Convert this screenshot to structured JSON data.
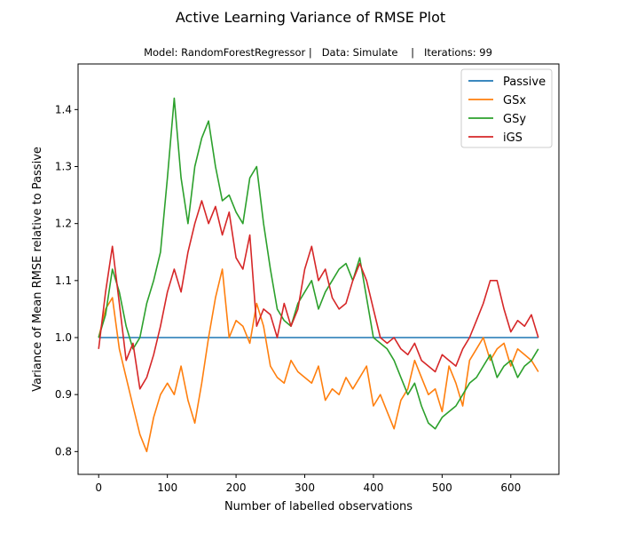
{
  "figure": {
    "title": "Active Learning Variance of RMSE Plot",
    "subtitle": "Model: RandomForestRegressor |   Data: Simulate    |   Iterations: 99"
  },
  "chart_data": {
    "type": "line",
    "xlabel": "Number of labelled observations",
    "ylabel": "Variance of Mean RMSE relative to Passive",
    "xlim": [
      -30,
      670
    ],
    "ylim": [
      0.76,
      1.48
    ],
    "xticks": [
      0,
      100,
      200,
      300,
      400,
      500,
      600
    ],
    "yticks": [
      0.8,
      0.9,
      1.0,
      1.1,
      1.2,
      1.3,
      1.4
    ],
    "legend_position": "top-right",
    "series": [
      {
        "name": "Passive",
        "color": "#1f77b4",
        "x": [
          0,
          640
        ],
        "y": [
          1.0,
          1.0
        ]
      },
      {
        "name": "GSx",
        "color": "#ff7f0e",
        "x": [
          0,
          10,
          20,
          30,
          40,
          50,
          60,
          70,
          80,
          90,
          100,
          110,
          120,
          130,
          140,
          150,
          160,
          170,
          180,
          190,
          200,
          210,
          220,
          230,
          240,
          250,
          260,
          270,
          280,
          290,
          300,
          310,
          320,
          330,
          340,
          350,
          360,
          370,
          380,
          390,
          400,
          410,
          420,
          430,
          440,
          450,
          460,
          470,
          480,
          490,
          500,
          510,
          520,
          530,
          540,
          550,
          560,
          570,
          580,
          590,
          600,
          610,
          620,
          630,
          640
        ],
        "y": [
          1.0,
          1.05,
          1.07,
          0.98,
          0.93,
          0.88,
          0.83,
          0.8,
          0.86,
          0.9,
          0.92,
          0.9,
          0.95,
          0.89,
          0.85,
          0.92,
          1.0,
          1.07,
          1.12,
          1.0,
          1.03,
          1.02,
          0.99,
          1.06,
          1.02,
          0.95,
          0.93,
          0.92,
          0.96,
          0.94,
          0.93,
          0.92,
          0.95,
          0.89,
          0.91,
          0.9,
          0.93,
          0.91,
          0.93,
          0.95,
          0.88,
          0.9,
          0.87,
          0.84,
          0.89,
          0.91,
          0.96,
          0.93,
          0.9,
          0.91,
          0.87,
          0.95,
          0.92,
          0.88,
          0.96,
          0.98,
          1.0,
          0.96,
          0.98,
          0.99,
          0.95,
          0.98,
          0.97,
          0.96,
          0.94
        ]
      },
      {
        "name": "GSy",
        "color": "#2ca02c",
        "x": [
          0,
          10,
          20,
          30,
          40,
          50,
          60,
          70,
          80,
          90,
          100,
          110,
          120,
          130,
          140,
          150,
          160,
          170,
          180,
          190,
          200,
          210,
          220,
          230,
          240,
          250,
          260,
          270,
          280,
          290,
          300,
          310,
          320,
          330,
          340,
          350,
          360,
          370,
          380,
          390,
          400,
          410,
          420,
          430,
          440,
          450,
          460,
          470,
          480,
          490,
          500,
          510,
          520,
          530,
          540,
          550,
          560,
          570,
          580,
          590,
          600,
          610,
          620,
          630,
          640
        ],
        "y": [
          1.0,
          1.04,
          1.12,
          1.08,
          1.02,
          0.98,
          1.0,
          1.06,
          1.1,
          1.15,
          1.28,
          1.42,
          1.28,
          1.2,
          1.3,
          1.35,
          1.38,
          1.3,
          1.24,
          1.25,
          1.22,
          1.2,
          1.28,
          1.3,
          1.2,
          1.12,
          1.05,
          1.03,
          1.02,
          1.06,
          1.08,
          1.1,
          1.05,
          1.08,
          1.1,
          1.12,
          1.13,
          1.1,
          1.14,
          1.07,
          1.0,
          0.99,
          0.98,
          0.96,
          0.93,
          0.9,
          0.92,
          0.88,
          0.85,
          0.84,
          0.86,
          0.87,
          0.88,
          0.9,
          0.92,
          0.93,
          0.95,
          0.97,
          0.93,
          0.95,
          0.96,
          0.93,
          0.95,
          0.96,
          0.98
        ]
      },
      {
        "name": "iGS",
        "color": "#d62728",
        "x": [
          0,
          10,
          20,
          30,
          40,
          50,
          60,
          70,
          80,
          90,
          100,
          110,
          120,
          130,
          140,
          150,
          160,
          170,
          180,
          190,
          200,
          210,
          220,
          230,
          240,
          250,
          260,
          270,
          280,
          290,
          300,
          310,
          320,
          330,
          340,
          350,
          360,
          370,
          380,
          390,
          400,
          410,
          420,
          430,
          440,
          450,
          460,
          470,
          480,
          490,
          500,
          510,
          520,
          530,
          540,
          550,
          560,
          570,
          580,
          590,
          600,
          610,
          620,
          630,
          640
        ],
        "y": [
          0.98,
          1.08,
          1.16,
          1.06,
          0.96,
          0.99,
          0.91,
          0.93,
          0.97,
          1.02,
          1.08,
          1.12,
          1.08,
          1.15,
          1.2,
          1.24,
          1.2,
          1.23,
          1.18,
          1.22,
          1.14,
          1.12,
          1.18,
          1.02,
          1.05,
          1.04,
          1.0,
          1.06,
          1.02,
          1.05,
          1.12,
          1.16,
          1.1,
          1.12,
          1.07,
          1.05,
          1.06,
          1.1,
          1.13,
          1.1,
          1.05,
          1.0,
          0.99,
          1.0,
          0.98,
          0.97,
          0.99,
          0.96,
          0.95,
          0.94,
          0.97,
          0.96,
          0.95,
          0.98,
          1.0,
          1.03,
          1.06,
          1.1,
          1.1,
          1.05,
          1.01,
          1.03,
          1.02,
          1.04,
          1.0
        ]
      }
    ]
  }
}
